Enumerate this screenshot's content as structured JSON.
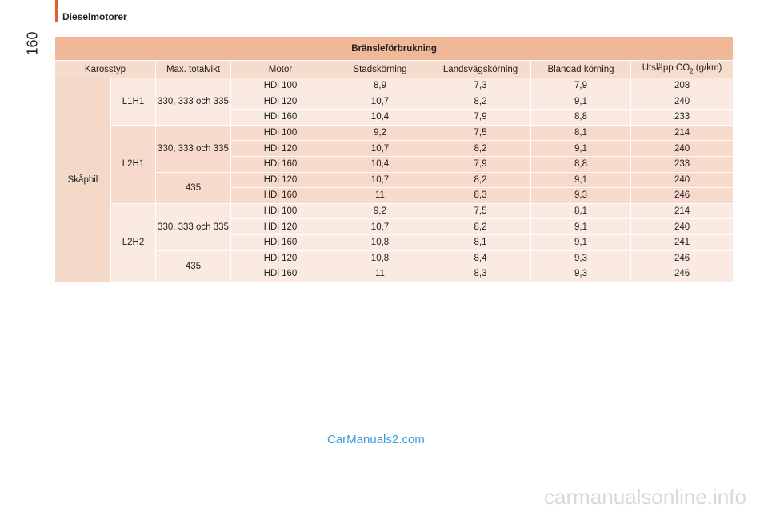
{
  "header": {
    "section": "Dieselmotorer",
    "page_number": "160"
  },
  "table": {
    "title": "Bränsleförbrukning",
    "columns": [
      "Karosstyp",
      "Max. totalvikt",
      "Motor",
      "Stadskörning",
      "Landsvägskörning",
      "Blandad körning",
      {
        "text": "Utsläpp CO",
        "sub": "2",
        "unit": "(g/km)"
      }
    ],
    "body_type": "Skåpbil",
    "groups": [
      {
        "name": "L1H1",
        "subgroups": [
          {
            "weight": "330, 333 och 335",
            "rows": [
              [
                "HDi 100",
                "8,9",
                "7,3",
                "7,9",
                "208"
              ],
              [
                "HDi 120",
                "10,7",
                "8,2",
                "9,1",
                "240"
              ],
              [
                "HDi 160",
                "10,4",
                "7,9",
                "8,8",
                "233"
              ]
            ]
          }
        ]
      },
      {
        "name": "L2H1",
        "subgroups": [
          {
            "weight": "330, 333 och 335",
            "rows": [
              [
                "HDi 100",
                "9,2",
                "7,5",
                "8,1",
                "214"
              ],
              [
                "HDi 120",
                "10,7",
                "8,2",
                "9,1",
                "240"
              ],
              [
                "HDi 160",
                "10,4",
                "7,9",
                "8,8",
                "233"
              ]
            ]
          },
          {
            "weight": "435",
            "rows": [
              [
                "HDi 120",
                "10,7",
                "8,2",
                "9,1",
                "240"
              ],
              [
                "HDi 160",
                "11",
                "8,3",
                "9,3",
                "246"
              ]
            ]
          }
        ]
      },
      {
        "name": "L2H2",
        "subgroups": [
          {
            "weight": "330, 333 och 335",
            "rows": [
              [
                "HDi 100",
                "9,2",
                "7,5",
                "8,1",
                "214"
              ],
              [
                "HDi 120",
                "10,7",
                "8,2",
                "9,1",
                "240"
              ],
              [
                "HDi 160",
                "10,8",
                "8,1",
                "9,1",
                "241"
              ]
            ]
          },
          {
            "weight": "435",
            "rows": [
              [
                "HDi 120",
                "10,8",
                "8,4",
                "9,3",
                "246"
              ],
              [
                "HDi 160",
                "11",
                "8,3",
                "9,3",
                "246"
              ]
            ]
          }
        ]
      }
    ]
  },
  "watermarks": [
    "CarManuals2.com",
    "carmanualsonline.info"
  ]
}
